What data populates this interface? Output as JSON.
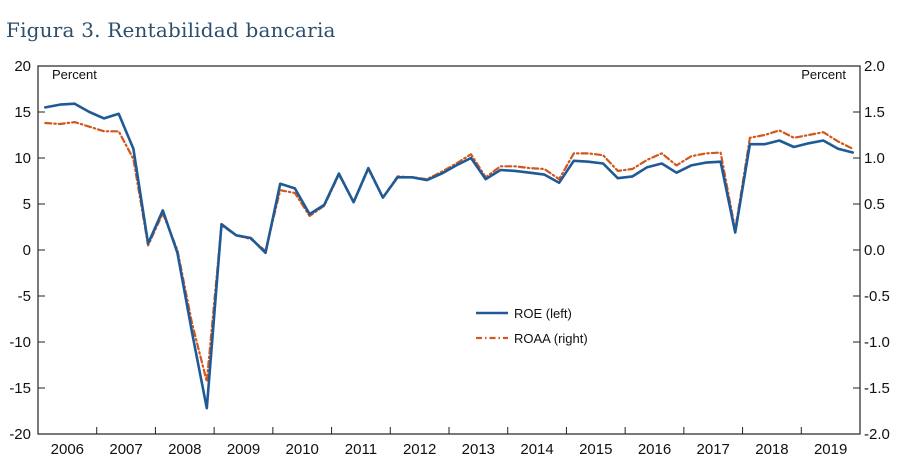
{
  "figure": {
    "title": "Figura 3. Rentabilidad bancaria"
  },
  "chart_data": {
    "type": "line",
    "title": "Figura 3. Rentabilidad bancaria",
    "left_axis": {
      "unit": "Percent",
      "range": [
        -20,
        20
      ],
      "ticks": [
        20,
        15,
        10,
        5,
        0,
        -5,
        -10,
        -15,
        -20
      ],
      "tick_labels": [
        "20",
        "15",
        "10",
        "5",
        "0",
        "-5",
        "-10",
        "-15",
        "-20"
      ]
    },
    "right_axis": {
      "unit": "Percent",
      "range": [
        -2.0,
        2.0
      ],
      "ticks": [
        2.0,
        1.5,
        1.0,
        0.5,
        0.0,
        -0.5,
        -1.0,
        -1.5,
        -2.0
      ],
      "tick_labels": [
        "2.0",
        "1.5",
        "1.0",
        "0.5",
        "0.0",
        "-0.5",
        "-1.0",
        "-1.5",
        "-2.0"
      ]
    },
    "x_axis": {
      "range": [
        2006,
        2020
      ],
      "year_labels": [
        "2006",
        "2007",
        "2008",
        "2009",
        "2010",
        "2011",
        "2012",
        "2013",
        "2014",
        "2015",
        "2016",
        "2017",
        "2018",
        "2019"
      ]
    },
    "legend": {
      "placement": "center-bottom"
    },
    "series": [
      {
        "name": "ROE (left)",
        "axis": "left",
        "color": "#1f5a96",
        "style": "solid",
        "x": [
          2006.0,
          2006.25,
          2006.5,
          2006.75,
          2007.0,
          2007.25,
          2007.5,
          2007.75,
          2008.0,
          2008.25,
          2008.5,
          2008.75,
          2009.0,
          2009.25,
          2009.5,
          2009.75,
          2010.0,
          2010.25,
          2010.5,
          2010.75,
          2011.0,
          2011.25,
          2011.5,
          2011.75,
          2012.0,
          2012.25,
          2012.5,
          2012.75,
          2013.0,
          2013.25,
          2013.5,
          2013.75,
          2014.0,
          2014.25,
          2014.5,
          2014.75,
          2015.0,
          2015.25,
          2015.5,
          2015.75,
          2016.0,
          2016.25,
          2016.5,
          2016.75,
          2017.0,
          2017.25,
          2017.5,
          2017.75,
          2018.0,
          2018.25,
          2018.5,
          2018.75,
          2019.0,
          2019.25,
          2019.5,
          2019.75
        ],
        "values": [
          15.5,
          15.8,
          15.9,
          15.0,
          14.3,
          14.8,
          11.0,
          0.7,
          4.3,
          -0.3,
          -9.0,
          -17.2,
          2.8,
          1.6,
          1.3,
          -0.3,
          7.2,
          6.7,
          3.9,
          4.9,
          8.3,
          5.2,
          8.9,
          5.7,
          7.9,
          7.9,
          7.6,
          8.3,
          9.2,
          10.0,
          7.7,
          8.7,
          8.6,
          8.4,
          8.2,
          7.3,
          9.7,
          9.6,
          9.4,
          7.8,
          8.0,
          9.0,
          9.4,
          8.4,
          9.2,
          9.5,
          9.6,
          1.9,
          11.5,
          11.5,
          11.9,
          11.2,
          11.6,
          11.9,
          11.0,
          10.6
        ]
      },
      {
        "name": "ROAA (right)",
        "axis": "right",
        "color": "#d0581e",
        "style": "dash-dot",
        "x": [
          2006.0,
          2006.25,
          2006.5,
          2006.75,
          2007.0,
          2007.25,
          2007.5,
          2007.75,
          2008.0,
          2008.25,
          2008.5,
          2008.75,
          2009.0,
          2009.25,
          2009.5,
          2009.75,
          2010.0,
          2010.25,
          2010.5,
          2010.75,
          2011.0,
          2011.25,
          2011.5,
          2011.75,
          2012.0,
          2012.25,
          2012.5,
          2012.75,
          2013.0,
          2013.25,
          2013.5,
          2013.75,
          2014.0,
          2014.25,
          2014.5,
          2014.75,
          2015.0,
          2015.25,
          2015.5,
          2015.75,
          2016.0,
          2016.25,
          2016.5,
          2016.75,
          2017.0,
          2017.25,
          2017.5,
          2017.75,
          2018.0,
          2018.25,
          2018.5,
          2018.75,
          2019.0,
          2019.25,
          2019.5,
          2019.75
        ],
        "values": [
          1.38,
          1.37,
          1.39,
          1.34,
          1.29,
          1.29,
          0.99,
          0.05,
          0.4,
          0.0,
          -0.8,
          -1.43,
          0.27,
          0.16,
          0.12,
          -0.01,
          0.65,
          0.62,
          0.37,
          0.48,
          0.82,
          0.52,
          0.88,
          0.57,
          0.8,
          0.79,
          0.77,
          0.85,
          0.94,
          1.04,
          0.79,
          0.91,
          0.91,
          0.89,
          0.88,
          0.77,
          1.05,
          1.05,
          1.03,
          0.86,
          0.88,
          0.98,
          1.05,
          0.92,
          1.02,
          1.05,
          1.06,
          0.22,
          1.22,
          1.25,
          1.3,
          1.22,
          1.25,
          1.28,
          1.18,
          1.1
        ]
      }
    ]
  }
}
